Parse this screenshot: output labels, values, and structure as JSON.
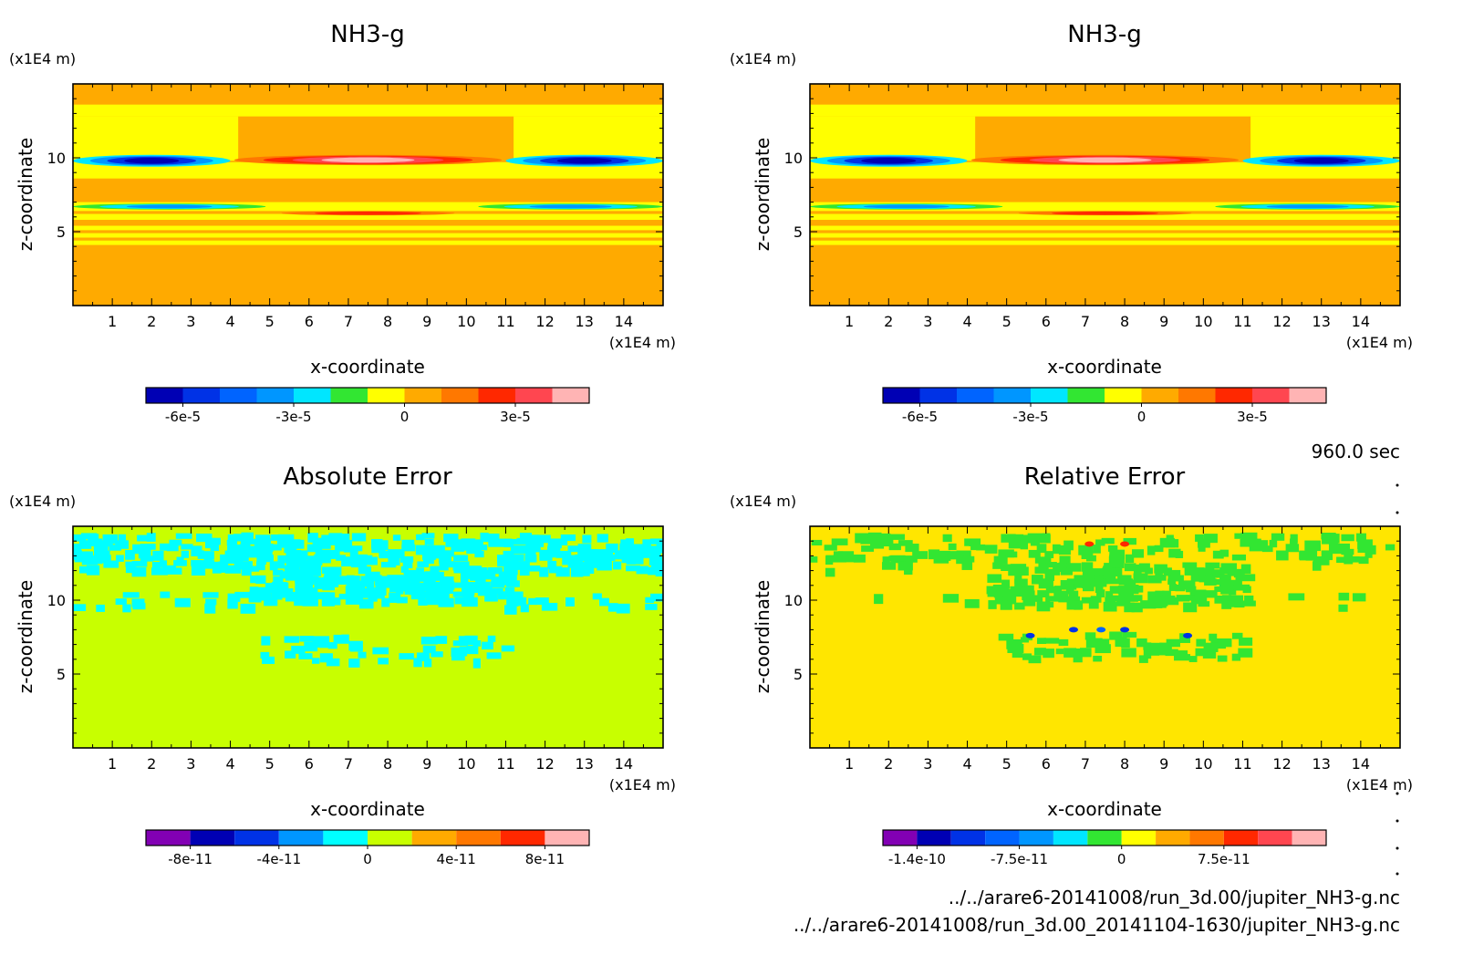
{
  "time_label": "960.0 sec",
  "files": [
    "../../arare6-20141008/run_3d.00/jupiter_NH3-g.nc",
    "../../arare6-20141008/run_3d.00_20141104-1630/jupiter_NH3-g.nc"
  ],
  "chart_data": [
    {
      "type": "heatmap",
      "title": "NH3-g",
      "xlabel": "x-coordinate",
      "ylabel": "z-coordinate",
      "x_unit": "(x1E4 m)",
      "y_unit": "(x1E4 m)",
      "xlim": [
        0,
        15
      ],
      "ylim": [
        0,
        15
      ],
      "x_ticks": [
        "1",
        "2",
        "3",
        "4",
        "5",
        "6",
        "7",
        "8",
        "9",
        "10",
        "11",
        "12",
        "13",
        "14"
      ],
      "y_ticks": [
        "5",
        "10"
      ],
      "colorbar": {
        "colors": [
          "#0000b4",
          "#0032e6",
          "#0064ff",
          "#0096ff",
          "#00e6ff",
          "#32e632",
          "#ffff00",
          "#ffaa00",
          "#ff7800",
          "#ff2800",
          "#ff4650",
          "#ffb4b4"
        ],
        "labels": [
          {
            "value": "-6e-5",
            "at": 1
          },
          {
            "value": "-3e-5",
            "at": 4
          },
          {
            "value": "0",
            "at": 7
          },
          {
            "value": "3e-5",
            "at": 10
          }
        ]
      },
      "background_color": "#ffaa00",
      "pattern": "nh3",
      "bands": [
        {
          "z": [
            13.6,
            12.8
          ],
          "fill": "#ffff00",
          "x": [
            0,
            15
          ]
        },
        {
          "z": [
            12.8,
            9.8
          ],
          "fill": "#ffff00",
          "x": [
            0,
            4.2
          ]
        },
        {
          "z": [
            12.8,
            9.8
          ],
          "fill": "#ffff00",
          "x": [
            11.2,
            15
          ]
        },
        {
          "z": [
            9.7,
            8.6
          ],
          "fill": "#ffff00",
          "x": [
            0,
            15
          ]
        },
        {
          "z": [
            7.0,
            6.4
          ],
          "fill": "#ffff00",
          "x": [
            0,
            15
          ]
        },
        {
          "z": [
            6.2,
            5.8
          ],
          "fill": "#ffff00",
          "x": [
            0,
            15
          ]
        },
        {
          "z": [
            5.4,
            5.1
          ],
          "fill": "#ffff00",
          "x": [
            0,
            15
          ]
        },
        {
          "z": [
            4.9,
            4.6
          ],
          "fill": "#ffff00",
          "x": [
            0,
            15
          ]
        },
        {
          "z": [
            4.4,
            4.1
          ],
          "fill": "#ffff00",
          "x": [
            0,
            15
          ]
        }
      ],
      "features": [
        {
          "x": [
            0,
            4
          ],
          "z": [
            10.2,
            9.4
          ],
          "rings": [
            "#00e6ff",
            "#0096ff",
            "#0032e6",
            "#0000b4"
          ]
        },
        {
          "x": [
            11,
            15
          ],
          "z": [
            10.2,
            9.4
          ],
          "rings": [
            "#00e6ff",
            "#0096ff",
            "#0032e6",
            "#0000b4"
          ]
        },
        {
          "x": [
            4.1,
            10.9
          ],
          "z": [
            10.2,
            9.5
          ],
          "rings": [
            "#ff7800",
            "#ff2800",
            "#ff4650",
            "#ffb4b4"
          ]
        },
        {
          "x": [
            0,
            4.9
          ],
          "z": [
            6.9,
            6.5
          ],
          "rings": [
            "#32e632",
            "#00e6ff",
            "#0096ff"
          ]
        },
        {
          "x": [
            10.3,
            15
          ],
          "z": [
            6.9,
            6.5
          ],
          "rings": [
            "#32e632",
            "#00e6ff",
            "#0096ff"
          ]
        },
        {
          "x": [
            5.3,
            9.7
          ],
          "z": [
            6.4,
            6.1
          ],
          "rings": [
            "#ff7800",
            "#ff2800"
          ]
        }
      ]
    },
    {
      "type": "heatmap",
      "title": "NH3-g",
      "xlabel": "x-coordinate",
      "ylabel": "z-coordinate",
      "x_unit": "(x1E4 m)",
      "y_unit": "(x1E4 m)",
      "xlim": [
        0,
        15
      ],
      "ylim": [
        0,
        15
      ],
      "x_ticks": [
        "1",
        "2",
        "3",
        "4",
        "5",
        "6",
        "7",
        "8",
        "9",
        "10",
        "11",
        "12",
        "13",
        "14"
      ],
      "y_ticks": [
        "5",
        "10"
      ],
      "colorbar": {
        "colors": [
          "#0000b4",
          "#0032e6",
          "#0064ff",
          "#0096ff",
          "#00e6ff",
          "#32e632",
          "#ffff00",
          "#ffaa00",
          "#ff7800",
          "#ff2800",
          "#ff4650",
          "#ffb4b4"
        ],
        "labels": [
          {
            "value": "-6e-5",
            "at": 1
          },
          {
            "value": "-3e-5",
            "at": 4
          },
          {
            "value": "0",
            "at": 7
          },
          {
            "value": "3e-5",
            "at": 10
          }
        ]
      },
      "background_color": "#ffaa00",
      "pattern": "nh3",
      "bands": [
        {
          "z": [
            13.6,
            12.8
          ],
          "fill": "#ffff00",
          "x": [
            0,
            15
          ]
        },
        {
          "z": [
            12.8,
            9.8
          ],
          "fill": "#ffff00",
          "x": [
            0,
            4.2
          ]
        },
        {
          "z": [
            12.8,
            9.8
          ],
          "fill": "#ffff00",
          "x": [
            11.2,
            15
          ]
        },
        {
          "z": [
            9.7,
            8.6
          ],
          "fill": "#ffff00",
          "x": [
            0,
            15
          ]
        },
        {
          "z": [
            7.0,
            6.4
          ],
          "fill": "#ffff00",
          "x": [
            0,
            15
          ]
        },
        {
          "z": [
            6.2,
            5.8
          ],
          "fill": "#ffff00",
          "x": [
            0,
            15
          ]
        },
        {
          "z": [
            5.4,
            5.1
          ],
          "fill": "#ffff00",
          "x": [
            0,
            15
          ]
        },
        {
          "z": [
            4.9,
            4.6
          ],
          "fill": "#ffff00",
          "x": [
            0,
            15
          ]
        },
        {
          "z": [
            4.4,
            4.1
          ],
          "fill": "#ffff00",
          "x": [
            0,
            15
          ]
        }
      ],
      "features": [
        {
          "x": [
            0,
            4
          ],
          "z": [
            10.2,
            9.4
          ],
          "rings": [
            "#00e6ff",
            "#0096ff",
            "#0032e6",
            "#0000b4"
          ]
        },
        {
          "x": [
            11,
            15
          ],
          "z": [
            10.2,
            9.4
          ],
          "rings": [
            "#00e6ff",
            "#0096ff",
            "#0032e6",
            "#0000b4"
          ]
        },
        {
          "x": [
            4.1,
            10.9
          ],
          "z": [
            10.2,
            9.5
          ],
          "rings": [
            "#ff7800",
            "#ff2800",
            "#ff4650",
            "#ffb4b4"
          ]
        },
        {
          "x": [
            0,
            4.9
          ],
          "z": [
            6.9,
            6.5
          ],
          "rings": [
            "#32e632",
            "#00e6ff",
            "#0096ff"
          ]
        },
        {
          "x": [
            10.3,
            15
          ],
          "z": [
            6.9,
            6.5
          ],
          "rings": [
            "#32e632",
            "#00e6ff",
            "#0096ff"
          ]
        },
        {
          "x": [
            5.3,
            9.7
          ],
          "z": [
            6.4,
            6.1
          ],
          "rings": [
            "#ff7800",
            "#ff2800"
          ]
        }
      ]
    },
    {
      "type": "heatmap",
      "title": "Absolute Error",
      "xlabel": "x-coordinate",
      "ylabel": "z-coordinate",
      "x_unit": "(x1E4 m)",
      "y_unit": "(x1E4 m)",
      "xlim": [
        0,
        15
      ],
      "ylim": [
        0,
        15
      ],
      "x_ticks": [
        "1",
        "2",
        "3",
        "4",
        "5",
        "6",
        "7",
        "8",
        "9",
        "10",
        "11",
        "12",
        "13",
        "14"
      ],
      "y_ticks": [
        "5",
        "10"
      ],
      "colorbar": {
        "colors": [
          "#8200b4",
          "#0000b4",
          "#0032e6",
          "#0096ff",
          "#00ffff",
          "#c8ff00",
          "#ffaa00",
          "#ff7800",
          "#ff2800",
          "#ffb4b4"
        ],
        "labels": [
          {
            "value": "-8e-11",
            "at": 1
          },
          {
            "value": "-4e-11",
            "at": 3
          },
          {
            "value": "0",
            "at": 5
          },
          {
            "value": "4e-11",
            "at": 7
          },
          {
            "value": "8e-11",
            "at": 9
          }
        ]
      },
      "background_color": "#c8ff00",
      "pattern": "noise",
      "speckle_color": "#00ffff",
      "speckle_regions": [
        {
          "x": [
            0,
            15
          ],
          "z": [
            14.5,
            12.0
          ],
          "density": 0.48
        },
        {
          "x": [
            4.5,
            11.0
          ],
          "z": [
            12.0,
            9.8
          ],
          "density": 0.6
        },
        {
          "x": [
            0,
            4.5
          ],
          "z": [
            10.5,
            9.7
          ],
          "density": 0.12
        },
        {
          "x": [
            11.0,
            15
          ],
          "z": [
            10.5,
            9.7
          ],
          "density": 0.12
        },
        {
          "x": [
            4.8,
            11.0
          ],
          "z": [
            7.6,
            6.0
          ],
          "density": 0.28
        }
      ]
    },
    {
      "type": "heatmap",
      "title": "Relative Error",
      "xlabel": "x-coordinate",
      "ylabel": "z-coordinate",
      "x_unit": "(x1E4 m)",
      "y_unit": "(x1E4 m)",
      "xlim": [
        0,
        15
      ],
      "ylim": [
        0,
        15
      ],
      "x_ticks": [
        "1",
        "2",
        "3",
        "4",
        "5",
        "6",
        "7",
        "8",
        "9",
        "10",
        "11",
        "12",
        "13",
        "14"
      ],
      "y_ticks": [
        "5",
        "10"
      ],
      "colorbar": {
        "colors": [
          "#8200b4",
          "#0000b4",
          "#0032e6",
          "#0064ff",
          "#0096ff",
          "#00e6ff",
          "#32e632",
          "#ffff00",
          "#ffaa00",
          "#ff7800",
          "#ff2800",
          "#ff4650",
          "#ffb4b4"
        ],
        "labels": [
          {
            "value": "-1.4e-10",
            "at": 1
          },
          {
            "value": "-7.5e-11",
            "at": 4
          },
          {
            "value": "0",
            "at": 7
          },
          {
            "value": "7.5e-11",
            "at": 10
          }
        ]
      },
      "background_color": "#ffe600",
      "pattern": "noise",
      "speckle_color": "#32e632",
      "speckle_regions": [
        {
          "x": [
            0,
            15
          ],
          "z": [
            14.5,
            13.0
          ],
          "density": 0.3
        },
        {
          "x": [
            0,
            15
          ],
          "z": [
            13.0,
            12.0
          ],
          "density": 0.12
        },
        {
          "x": [
            4.5,
            11.0
          ],
          "z": [
            12.5,
            9.8
          ],
          "density": 0.6
        },
        {
          "x": [
            0,
            4.5
          ],
          "z": [
            10.5,
            9.7
          ],
          "density": 0.06
        },
        {
          "x": [
            11.0,
            15
          ],
          "z": [
            10.5,
            9.7
          ],
          "density": 0.06
        },
        {
          "x": [
            4.8,
            11.0
          ],
          "z": [
            7.8,
            6.0
          ],
          "density": 0.3
        }
      ],
      "dots": [
        {
          "x": 5.6,
          "z": 7.6,
          "fill": "#0032e6"
        },
        {
          "x": 6.7,
          "z": 8.0,
          "fill": "#0032e6"
        },
        {
          "x": 7.4,
          "z": 8.0,
          "fill": "#0064ff"
        },
        {
          "x": 8.0,
          "z": 8.0,
          "fill": "#0032e6"
        },
        {
          "x": 9.6,
          "z": 7.6,
          "fill": "#0032e6"
        },
        {
          "x": 7.1,
          "z": 13.8,
          "fill": "#ff2800"
        },
        {
          "x": 8.0,
          "z": 13.8,
          "fill": "#ff2800"
        }
      ]
    }
  ]
}
